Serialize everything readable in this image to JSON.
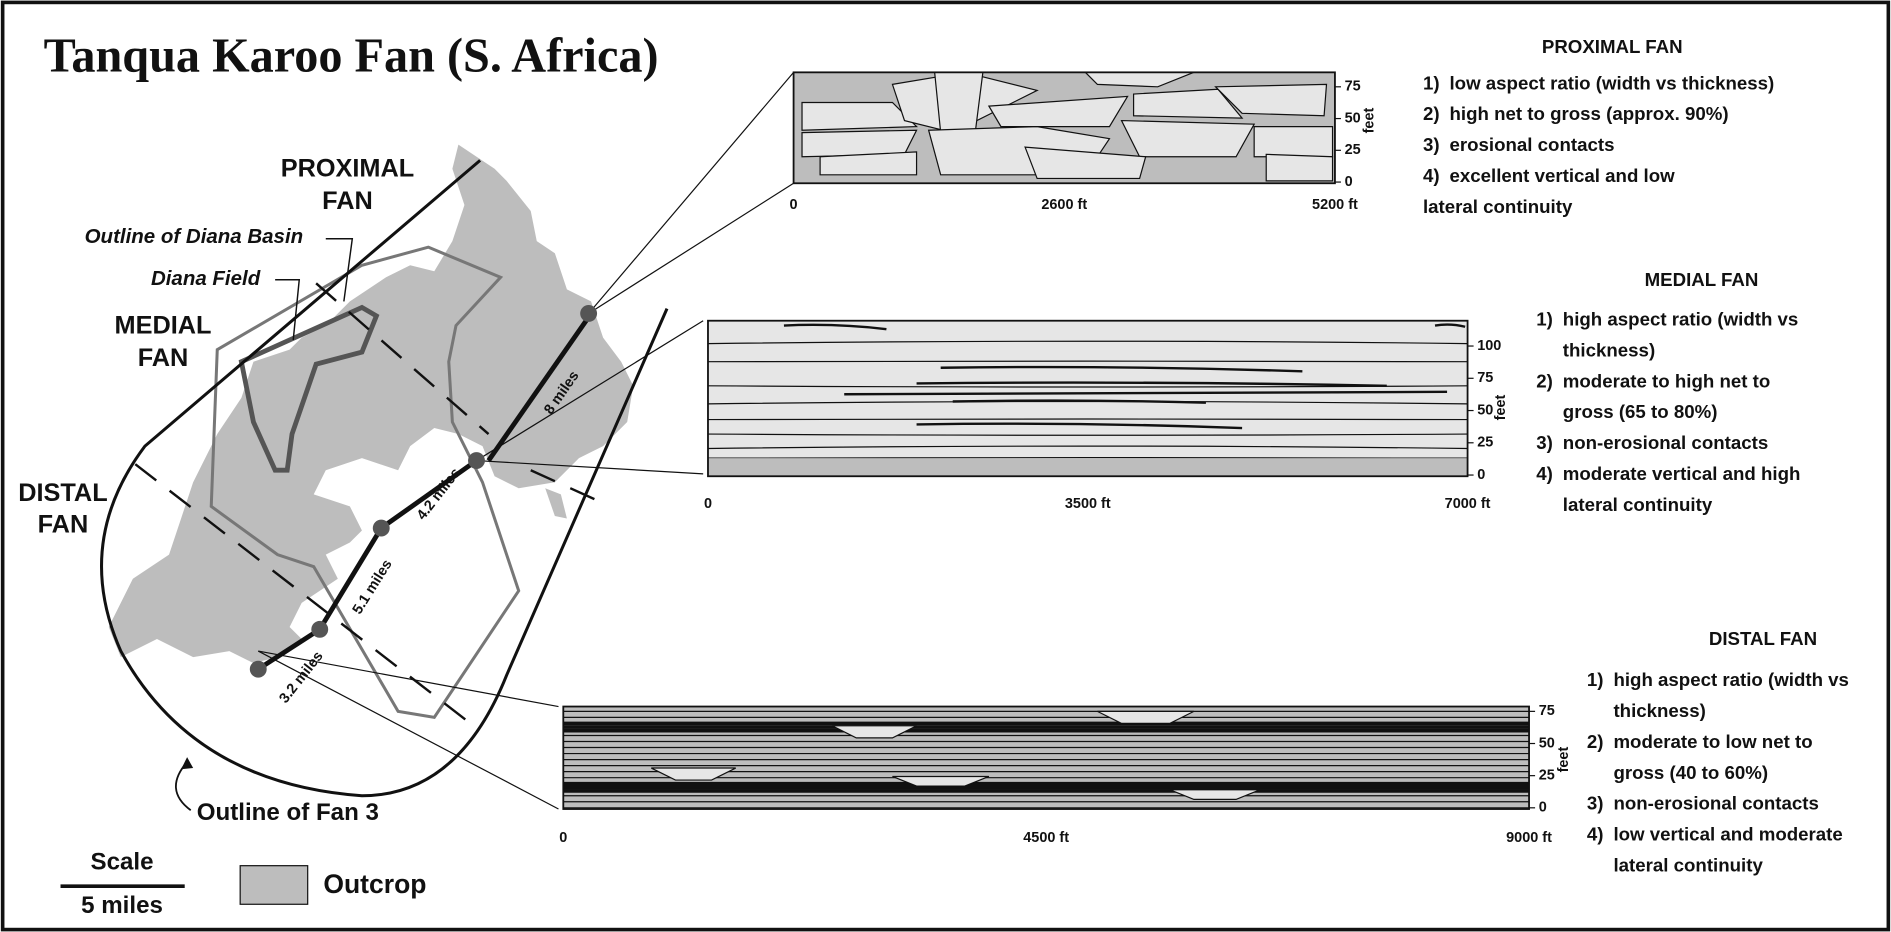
{
  "title": "Tanqua Karoo Fan (S. Africa)",
  "map": {
    "proximal_fan": [
      "PROXIMAL",
      "FAN"
    ],
    "medial_fan": [
      "MEDIAL",
      "FAN"
    ],
    "distal_fan": [
      "DISTAL",
      "FAN"
    ],
    "outline_diana_basin": "Outline of Diana Basin",
    "diana_field": "Diana Field",
    "outline_fan3": "Outline of Fan 3",
    "distances": [
      "8 miles",
      "4.2 miles",
      "5.1 miles",
      "3.2 miles"
    ]
  },
  "legend": {
    "scale": "Scale",
    "scale_length": "5 miles",
    "outcrop": "Outcrop"
  },
  "sections": [
    {
      "x_ticks": [
        "0",
        "2600 ft",
        "5200 ft"
      ],
      "y_ticks": [
        75,
        50,
        25,
        0
      ],
      "y_label": "feet"
    },
    {
      "x_ticks": [
        "0",
        "3500 ft",
        "7000 ft"
      ],
      "y_ticks": [
        100,
        75,
        50,
        25,
        0
      ],
      "y_label": "feet"
    },
    {
      "x_ticks": [
        "0",
        "4500 ft",
        "9000 ft"
      ],
      "y_ticks": [
        75,
        50,
        25,
        0
      ],
      "y_label": "feet"
    }
  ],
  "panels": [
    {
      "title": "PROXIMAL FAN",
      "items": [
        {
          "num": "1)",
          "lines": [
            "low aspect ratio (width vs thickness)"
          ]
        },
        {
          "num": "2)",
          "lines": [
            "high net to gross (approx. 90%)"
          ]
        },
        {
          "num": "3)",
          "lines": [
            "erosional contacts"
          ]
        },
        {
          "num": "4)",
          "lines": [
            "excellent vertical and low",
            "lateral continuity"
          ]
        }
      ]
    },
    {
      "title": "MEDIAL FAN",
      "items": [
        {
          "num": "1)",
          "lines": [
            "high aspect ratio (width vs",
            "thickness)"
          ]
        },
        {
          "num": "2)",
          "lines": [
            "moderate to high net to",
            "gross (65 to 80%)"
          ]
        },
        {
          "num": "3)",
          "lines": [
            "non-erosional contacts"
          ]
        },
        {
          "num": "4)",
          "lines": [
            "moderate vertical and high",
            "lateral continuity"
          ]
        }
      ]
    },
    {
      "title": "DISTAL FAN",
      "items": [
        {
          "num": "1)",
          "lines": [
            "high aspect ratio (width vs",
            "thickness)"
          ]
        },
        {
          "num": "2)",
          "lines": [
            "moderate to low net to",
            "gross (40 to 60%)"
          ]
        },
        {
          "num": "3)",
          "lines": [
            "non-erosional contacts"
          ]
        },
        {
          "num": "4)",
          "lines": [
            "low vertical and moderate",
            "lateral continuity"
          ]
        }
      ]
    }
  ]
}
